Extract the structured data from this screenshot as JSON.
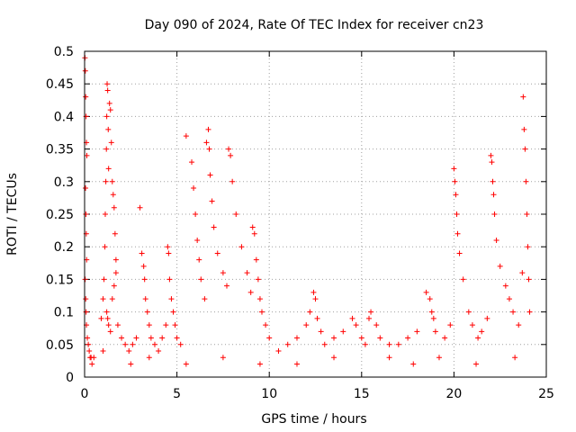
{
  "chart_data": {
    "type": "scatter",
    "title": "Day 090 of 2024, Rate Of TEC Index for receiver cn23",
    "xlabel": "GPS time / hours",
    "ylabel": "ROTI / TECUs",
    "xlim": [
      0,
      25
    ],
    "ylim": [
      0,
      0.5
    ],
    "xticks": [
      0,
      5,
      10,
      15,
      20,
      25
    ],
    "xtick_labels": [
      "0",
      "5",
      "10",
      "15",
      "20",
      "25"
    ],
    "yticks": [
      0,
      0.05,
      0.1,
      0.15,
      0.2,
      0.25,
      0.3,
      0.35,
      0.4,
      0.45,
      0.5
    ],
    "ytick_labels": [
      "0",
      "0.05",
      "0.1",
      "0.15",
      "0.2",
      "0.25",
      "0.3",
      "0.35",
      "0.4",
      "0.45",
      "0.5"
    ],
    "grid": true,
    "marker": "+",
    "color": "#ff0000",
    "series": [
      {
        "name": "ROTI",
        "x": [
          0.02,
          0.04,
          0.06,
          0.08,
          0.1,
          0.12,
          0.05,
          0.07,
          0.09,
          0.11,
          0.03,
          0.06,
          0.08,
          0.1,
          0.15,
          0.2,
          0.25,
          0.3,
          0.35,
          0.4,
          0.9,
          1.0,
          1.05,
          1.1,
          1.12,
          1.15,
          1.18,
          1.2,
          1.22,
          1.25,
          1.28,
          1.3,
          1.35,
          1.4,
          1.45,
          1.5,
          1.55,
          1.6,
          1.65,
          1.7,
          1.2,
          1.25,
          1.3,
          1.4,
          1.5,
          1.6,
          1.7,
          1.8,
          2.0,
          2.2,
          2.4,
          2.6,
          2.8,
          3.0,
          3.1,
          3.2,
          3.25,
          3.3,
          3.4,
          3.5,
          3.6,
          3.8,
          4.0,
          4.2,
          4.4,
          4.5,
          4.55,
          4.6,
          4.7,
          4.8,
          4.9,
          5.0,
          5.2,
          5.5,
          5.8,
          5.9,
          6.0,
          6.1,
          6.2,
          6.3,
          6.5,
          6.6,
          6.7,
          6.75,
          6.8,
          6.9,
          7.0,
          7.2,
          7.5,
          7.7,
          7.8,
          7.9,
          8.0,
          8.2,
          8.5,
          8.8,
          9.0,
          9.1,
          9.2,
          9.3,
          9.4,
          9.5,
          9.6,
          9.8,
          10.0,
          10.5,
          11.0,
          11.5,
          12.0,
          12.2,
          12.4,
          12.5,
          12.6,
          12.8,
          13.0,
          13.5,
          14.0,
          14.5,
          14.7,
          15.0,
          15.2,
          15.4,
          15.5,
          15.8,
          16.0,
          16.5,
          17.0,
          17.5,
          18.0,
          18.5,
          18.7,
          18.8,
          18.9,
          19.0,
          19.5,
          19.8,
          20.0,
          20.05,
          20.1,
          20.15,
          20.2,
          20.3,
          20.5,
          20.8,
          21.0,
          21.3,
          21.5,
          21.8,
          22.0,
          22.05,
          22.1,
          22.15,
          22.2,
          22.3,
          22.5,
          22.8,
          23.0,
          23.2,
          23.5,
          23.7,
          23.75,
          23.8,
          23.85,
          23.9,
          23.95,
          24.0,
          24.05,
          24.1,
          0.5,
          1.0,
          2.5,
          3.5,
          5.5,
          7.5,
          9.5,
          11.5,
          13.5,
          16.5,
          17.8,
          19.2,
          21.2,
          23.3
        ],
        "y": [
          0.49,
          0.47,
          0.43,
          0.4,
          0.36,
          0.34,
          0.29,
          0.25,
          0.22,
          0.18,
          0.15,
          0.12,
          0.1,
          0.08,
          0.06,
          0.05,
          0.04,
          0.03,
          0.03,
          0.02,
          0.09,
          0.12,
          0.15,
          0.2,
          0.25,
          0.3,
          0.35,
          0.4,
          0.45,
          0.44,
          0.38,
          0.32,
          0.42,
          0.41,
          0.36,
          0.3,
          0.28,
          0.26,
          0.22,
          0.18,
          0.1,
          0.09,
          0.08,
          0.07,
          0.12,
          0.14,
          0.16,
          0.08,
          0.06,
          0.05,
          0.04,
          0.05,
          0.06,
          0.26,
          0.19,
          0.17,
          0.15,
          0.12,
          0.1,
          0.08,
          0.06,
          0.05,
          0.04,
          0.06,
          0.08,
          0.2,
          0.19,
          0.15,
          0.12,
          0.1,
          0.08,
          0.06,
          0.05,
          0.37,
          0.33,
          0.29,
          0.25,
          0.21,
          0.18,
          0.15,
          0.12,
          0.36,
          0.38,
          0.35,
          0.31,
          0.27,
          0.23,
          0.19,
          0.16,
          0.14,
          0.35,
          0.34,
          0.3,
          0.25,
          0.2,
          0.16,
          0.13,
          0.23,
          0.22,
          0.18,
          0.15,
          0.12,
          0.1,
          0.08,
          0.06,
          0.04,
          0.05,
          0.06,
          0.08,
          0.1,
          0.13,
          0.12,
          0.09,
          0.07,
          0.05,
          0.06,
          0.07,
          0.09,
          0.08,
          0.06,
          0.05,
          0.09,
          0.1,
          0.08,
          0.06,
          0.05,
          0.05,
          0.06,
          0.07,
          0.13,
          0.12,
          0.1,
          0.09,
          0.07,
          0.06,
          0.08,
          0.32,
          0.3,
          0.28,
          0.25,
          0.22,
          0.19,
          0.15,
          0.1,
          0.08,
          0.06,
          0.07,
          0.09,
          0.34,
          0.33,
          0.3,
          0.28,
          0.25,
          0.21,
          0.17,
          0.14,
          0.12,
          0.1,
          0.08,
          0.16,
          0.43,
          0.38,
          0.35,
          0.3,
          0.25,
          0.2,
          0.15,
          0.1,
          0.03,
          0.04,
          0.02,
          0.03,
          0.02,
          0.03,
          0.02,
          0.02,
          0.03,
          0.03,
          0.02,
          0.03,
          0.02,
          0.03
        ]
      }
    ]
  }
}
